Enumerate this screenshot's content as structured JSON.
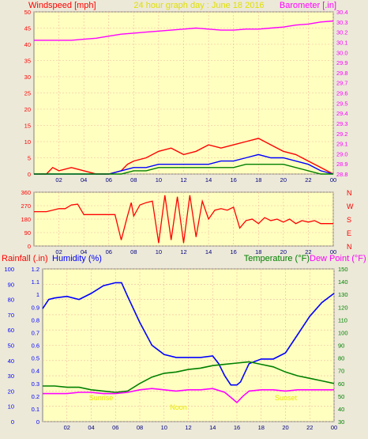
{
  "header": {
    "windspeed_label": "Windspeed [mph]",
    "title": "24 hour graph day : June 18 2016",
    "barometer_label": "Barometer [.in]"
  },
  "bottom_header": {
    "rainfall_label": "Rainfall (.in)",
    "humidity_label": "Humidity (%)",
    "temperature_label": "Temperature (°F)",
    "dewpoint_label": "Dew Point (°F)"
  },
  "colors": {
    "frame": "#ece9d8",
    "plot_bg": "#ffffc0",
    "grid": "#f0b8a0",
    "red": "#ff0000",
    "blue": "#0000ff",
    "green": "#008000",
    "magenta": "#ff00ff",
    "axis_red": "#ff0000",
    "title_yellow": "#e0e000"
  },
  "x_ticks": [
    "02",
    "04",
    "06",
    "08",
    "10",
    "12",
    "14",
    "16",
    "18",
    "20",
    "22",
    "00"
  ],
  "compass_labels": [
    "N",
    "W",
    "S",
    "E",
    "N"
  ],
  "annotations": [
    "Sunrise",
    "Noon",
    "Sunset"
  ],
  "chart_data": [
    {
      "type": "line",
      "name": "wind-barometer",
      "x_unit": "hour",
      "xlim": [
        0,
        24
      ],
      "y_left": {
        "label": "Windspeed [mph]",
        "ylim": [
          0,
          50
        ],
        "ticks": [
          0,
          5,
          10,
          15,
          20,
          25,
          30,
          35,
          40,
          45,
          50
        ]
      },
      "y_right": {
        "label": "Barometer [.in]",
        "ylim": [
          28.8,
          30.4
        ],
        "ticks": [
          28.8,
          28.9,
          29.0,
          29.1,
          29.2,
          29.3,
          29.4,
          29.5,
          29.6,
          29.7,
          29.8,
          29.9,
          30.0,
          30.1,
          30.2,
          30.3,
          30.4
        ]
      },
      "series": [
        {
          "name": "Barometer [.in]",
          "axis": "right",
          "color": "#ff00ff",
          "x": [
            0,
            1,
            2,
            3,
            4,
            5,
            6,
            7,
            8,
            9,
            10,
            11,
            12,
            13,
            14,
            15,
            16,
            17,
            18,
            19,
            20,
            21,
            22,
            23,
            24
          ],
          "y": [
            30.12,
            30.12,
            30.12,
            30.12,
            30.13,
            30.14,
            30.16,
            30.18,
            30.19,
            30.2,
            30.21,
            30.22,
            30.23,
            30.24,
            30.23,
            30.22,
            30.22,
            30.23,
            30.23,
            30.24,
            30.25,
            30.27,
            30.28,
            30.3,
            30.31
          ]
        },
        {
          "name": "gust",
          "axis": "left",
          "color": "#ff0000",
          "x": [
            0,
            1,
            1.5,
            2,
            3,
            4,
            5,
            6,
            7,
            7.5,
            8,
            9,
            10,
            11,
            12,
            13,
            14,
            15,
            16,
            17,
            18,
            19,
            19.5,
            20,
            21,
            22,
            23,
            24
          ],
          "y": [
            0,
            0,
            2,
            1,
            2,
            1,
            0,
            0,
            1,
            3,
            4,
            5,
            7,
            8,
            6,
            7,
            9,
            8,
            9,
            10,
            11,
            9,
            8,
            7,
            6,
            4,
            2,
            0
          ]
        },
        {
          "name": "average",
          "axis": "left",
          "color": "#0000ff",
          "x": [
            0,
            6,
            7,
            8,
            9,
            10,
            11,
            12,
            13,
            14,
            15,
            16,
            17,
            18,
            19,
            20,
            21,
            22,
            23,
            24
          ],
          "y": [
            0,
            0,
            1,
            2,
            2,
            3,
            3,
            3,
            3,
            3,
            4,
            4,
            5,
            6,
            5,
            5,
            4,
            3,
            1,
            0
          ]
        },
        {
          "name": "low",
          "axis": "left",
          "color": "#008000",
          "x": [
            0,
            6,
            7,
            8,
            9,
            10,
            11,
            12,
            13,
            14,
            15,
            16,
            17,
            18,
            19,
            20,
            21,
            22,
            23,
            24
          ],
          "y": [
            0,
            0,
            0,
            1,
            1,
            2,
            2,
            2,
            2,
            2,
            2,
            2,
            3,
            3,
            3,
            3,
            2,
            1,
            0,
            0
          ]
        }
      ]
    },
    {
      "type": "line",
      "name": "wind-direction",
      "x_unit": "hour",
      "xlim": [
        0,
        24
      ],
      "ylim": [
        0,
        360
      ],
      "yticks": [
        0,
        90,
        180,
        270,
        360
      ],
      "series": [
        {
          "name": "direction",
          "color": "#ff0000",
          "x": [
            0,
            0.5,
            1,
            2,
            2.5,
            3,
            3.5,
            4,
            5,
            6,
            6.5,
            7,
            7.5,
            7.8,
            8,
            8.5,
            9,
            9.5,
            10,
            10.5,
            11,
            11.5,
            12,
            12.5,
            13,
            13.5,
            14,
            14.5,
            15,
            15.5,
            16,
            16.5,
            17,
            17.5,
            18,
            18.5,
            19,
            19.5,
            20,
            20.5,
            21,
            21.5,
            22,
            22.5,
            23,
            23.5,
            24
          ],
          "y": [
            230,
            230,
            230,
            250,
            250,
            275,
            280,
            210,
            210,
            210,
            210,
            40,
            200,
            290,
            200,
            275,
            290,
            300,
            20,
            340,
            40,
            330,
            20,
            340,
            60,
            300,
            180,
            240,
            250,
            240,
            260,
            120,
            170,
            180,
            150,
            190,
            170,
            180,
            160,
            180,
            150,
            170,
            160,
            170,
            150,
            150,
            150
          ]
        }
      ]
    },
    {
      "type": "line",
      "name": "humidity-temperature",
      "x_unit": "hour",
      "xlim": [
        0,
        24
      ],
      "y_left_humidity": {
        "label": "Humidity (%)",
        "ylim": [
          0,
          100
        ],
        "ticks": [
          0,
          10,
          20,
          30,
          40,
          50,
          60,
          70,
          80,
          90,
          100
        ]
      },
      "y_left_rain": {
        "label": "Rainfall (.in)",
        "ylim": [
          0,
          1.2
        ],
        "ticks": [
          0,
          0.1,
          0.2,
          0.3,
          0.4,
          0.5,
          0.6,
          0.7,
          0.8,
          0.9,
          1,
          1.1,
          1.2
        ]
      },
      "y_right": {
        "label": "Temperature (°F)",
        "ylim": [
          30,
          150
        ],
        "ticks": [
          30,
          40,
          50,
          60,
          70,
          80,
          90,
          100,
          110,
          120,
          130,
          140,
          150
        ]
      },
      "series": [
        {
          "name": "Humidity (%)",
          "axis": "humidity",
          "color": "#0000ff",
          "x": [
            0,
            0.5,
            1,
            2,
            3,
            4,
            5,
            6,
            6.5,
            7,
            8,
            9,
            9.5,
            10,
            11,
            12,
            13,
            14,
            14.5,
            15,
            15.5,
            16,
            16.3,
            17,
            18,
            19,
            20,
            21,
            22,
            23,
            24
          ],
          "y": [
            74,
            80,
            81,
            82,
            80,
            84,
            89,
            91,
            91,
            82,
            65,
            50,
            47,
            44,
            42,
            42,
            42,
            43,
            38,
            30,
            24,
            24,
            26,
            38,
            41,
            41,
            45,
            57,
            69,
            78,
            84
          ]
        },
        {
          "name": "Temperature (°F)",
          "axis": "right",
          "color": "#008000",
          "x": [
            0,
            1,
            2,
            3,
            4,
            5,
            6,
            7,
            8,
            9,
            10,
            11,
            12,
            13,
            14,
            15,
            16,
            17,
            18,
            19,
            20,
            21,
            22,
            23,
            24
          ],
          "y": [
            58,
            58,
            57,
            57,
            55,
            54,
            53,
            54,
            60,
            65,
            68,
            69,
            71,
            72,
            74,
            75,
            76,
            77,
            75,
            73,
            69,
            66,
            64,
            62,
            60
          ]
        },
        {
          "name": "Dew Point (°F)",
          "axis": "right",
          "color": "#ff00ff",
          "x": [
            0,
            1,
            2,
            3,
            4,
            5,
            6,
            7,
            8,
            9,
            10,
            11,
            12,
            13,
            14,
            15,
            15.5,
            16,
            16.5,
            17,
            18,
            19,
            20,
            21,
            22,
            23,
            24
          ],
          "y": [
            52,
            52,
            52,
            53,
            53,
            52,
            52,
            53,
            55,
            56,
            55,
            54,
            55,
            55,
            56,
            53,
            49,
            45,
            50,
            54,
            55,
            55,
            54,
            55,
            55,
            55,
            55
          ]
        }
      ]
    }
  ]
}
